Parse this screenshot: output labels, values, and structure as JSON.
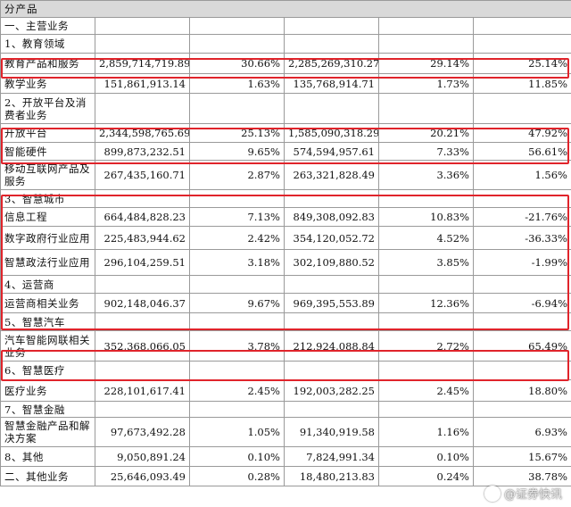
{
  "header": {
    "title": "分产品"
  },
  "rows": [
    {
      "label": "一、主营业务",
      "v1": "",
      "p1": "",
      "v2": "",
      "p2": "",
      "chg": ""
    },
    {
      "label": "1、教育领域",
      "v1": "",
      "p1": "",
      "v2": "",
      "p2": "",
      "chg": ""
    },
    {
      "label": "教育产品和服务",
      "v1": "2,859,714,719.89",
      "p1": "30.66%",
      "v2": "2,285,269,310.27",
      "p2": "29.14%",
      "chg": "25.14%"
    },
    {
      "label": "教学业务",
      "v1": "151,861,913.14",
      "p1": "1.63%",
      "v2": "135,768,914.71",
      "p2": "1.73%",
      "chg": "11.85%"
    },
    {
      "label": "2、开放平台及消费者业务",
      "v1": "",
      "p1": "",
      "v2": "",
      "p2": "",
      "chg": ""
    },
    {
      "label": "开放平台",
      "v1": "2,344,598,765.69",
      "p1": "25.13%",
      "v2": "1,585,090,318.29",
      "p2": "20.21%",
      "chg": "47.92%"
    },
    {
      "label": "智能硬件",
      "v1": "899,873,232.51",
      "p1": "9.65%",
      "v2": "574,594,957.61",
      "p2": "7.33%",
      "chg": "56.61%"
    },
    {
      "label": "移动互联网产品及服务",
      "v1": "267,435,160.71",
      "p1": "2.87%",
      "v2": "263,321,828.49",
      "p2": "3.36%",
      "chg": "1.56%"
    },
    {
      "label": "3、智慧城市",
      "v1": "",
      "p1": "",
      "v2": "",
      "p2": "",
      "chg": ""
    },
    {
      "label": "信息工程",
      "v1": "664,484,828.23",
      "p1": "7.13%",
      "v2": "849,308,092.83",
      "p2": "10.83%",
      "chg": "-21.76%"
    },
    {
      "label": "数字政府行业应用",
      "v1": "225,483,944.62",
      "p1": "2.42%",
      "v2": "354,120,052.72",
      "p2": "4.52%",
      "chg": "-36.33%"
    },
    {
      "label": "智慧政法行业应用",
      "v1": "296,104,259.51",
      "p1": "3.18%",
      "v2": "302,109,880.52",
      "p2": "3.85%",
      "chg": "-1.99%"
    },
    {
      "label": "4、运营商",
      "v1": "",
      "p1": "",
      "v2": "",
      "p2": "",
      "chg": ""
    },
    {
      "label": "运营商相关业务",
      "v1": "902,148,046.37",
      "p1": "9.67%",
      "v2": "969,395,553.89",
      "p2": "12.36%",
      "chg": "-6.94%"
    },
    {
      "label": "5、智慧汽车",
      "v1": "",
      "p1": "",
      "v2": "",
      "p2": "",
      "chg": ""
    },
    {
      "label": "汽车智能网联相关业务",
      "v1": "352,368,066.05",
      "p1": "3.78%",
      "v2": "212,924,088.84",
      "p2": "2.72%",
      "chg": "65.49%"
    },
    {
      "label": "6、智慧医疗",
      "v1": "",
      "p1": "",
      "v2": "",
      "p2": "",
      "chg": ""
    },
    {
      "label": "医疗业务",
      "v1": "228,101,617.41",
      "p1": "2.45%",
      "v2": "192,003,282.25",
      "p2": "2.45%",
      "chg": "18.80%"
    },
    {
      "label": "7、智慧金融",
      "v1": "",
      "p1": "",
      "v2": "",
      "p2": "",
      "chg": ""
    },
    {
      "label": "智慧金融产品和解决方案",
      "v1": "97,673,492.28",
      "p1": "1.05%",
      "v2": "91,340,919.58",
      "p2": "1.16%",
      "chg": "6.93%"
    },
    {
      "label": "8、其他",
      "v1": "9,050,891.24",
      "p1": "0.10%",
      "v2": "7,824,991.34",
      "p2": "0.10%",
      "chg": "15.67%"
    },
    {
      "label": "二、其他业务",
      "v1": "25,646,093.49",
      "p1": "0.28%",
      "v2": "18,480,213.83",
      "p2": "0.24%",
      "chg": "38.78%"
    }
  ],
  "watermark": {
    "text": "@证券快讯"
  }
}
